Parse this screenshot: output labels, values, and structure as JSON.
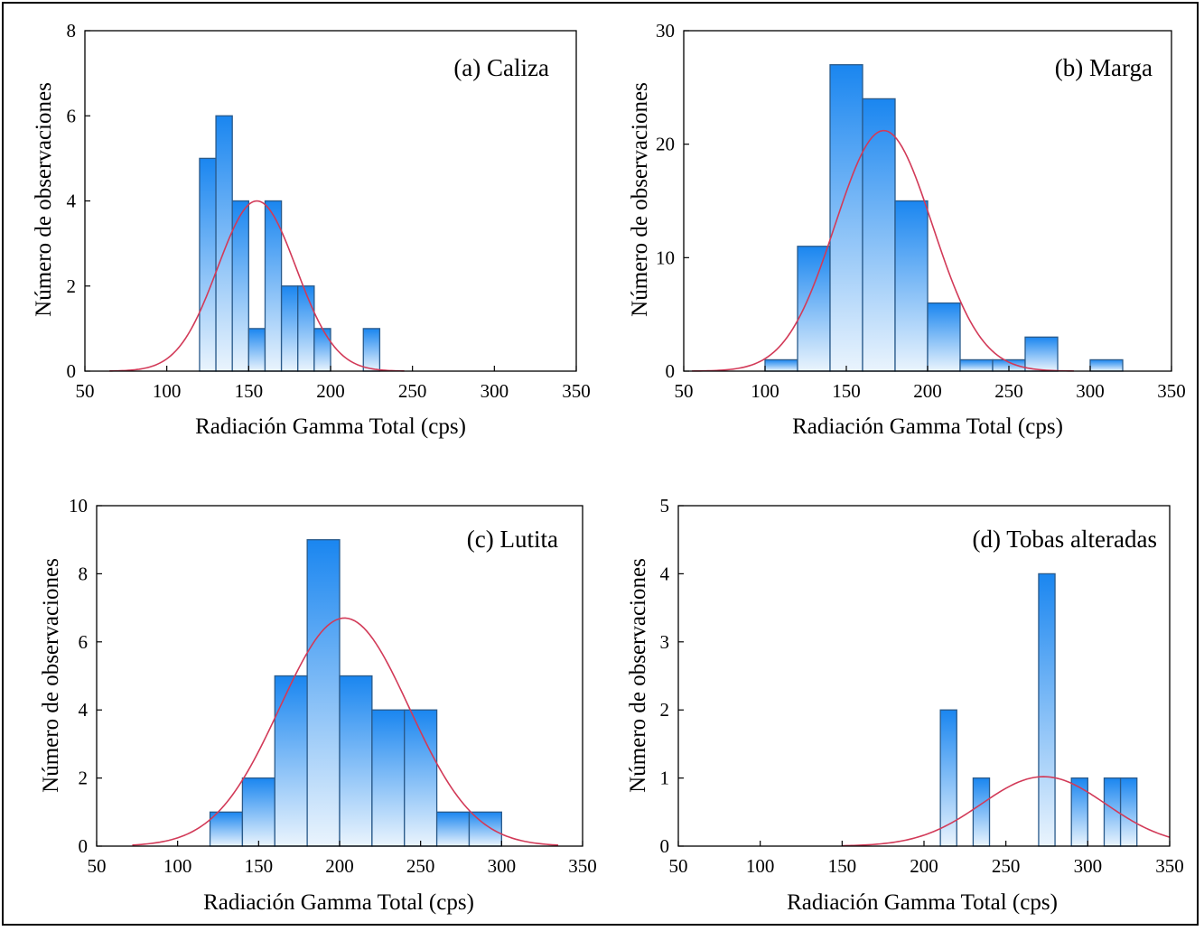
{
  "chart_data": [
    {
      "type": "bar",
      "title": "(a) Caliza",
      "xlabel": "Radiación Gamma Total (cps)",
      "ylabel": "Número de observaciones",
      "xlim": [
        50,
        350
      ],
      "ylim": [
        0,
        8
      ],
      "xticks": [
        "50",
        "100",
        "150",
        "200",
        "250",
        "300",
        "350"
      ],
      "yticks": [
        "0",
        "2",
        "4",
        "6",
        "8"
      ],
      "bins": [
        {
          "x0": 120,
          "x1": 130,
          "count": 5
        },
        {
          "x0": 130,
          "x1": 140,
          "count": 6
        },
        {
          "x0": 140,
          "x1": 150,
          "count": 4
        },
        {
          "x0": 150,
          "x1": 160,
          "count": 1
        },
        {
          "x0": 160,
          "x1": 170,
          "count": 4
        },
        {
          "x0": 170,
          "x1": 180,
          "count": 2
        },
        {
          "x0": 180,
          "x1": 190,
          "count": 2
        },
        {
          "x0": 190,
          "x1": 200,
          "count": 1
        },
        {
          "x0": 220,
          "x1": 230,
          "count": 1
        }
      ],
      "normal_curve": {
        "mean": 155,
        "peak": 4.0,
        "sd": 24,
        "x_from": 65,
        "x_to": 245
      }
    },
    {
      "type": "bar",
      "title": "(b) Marga",
      "xlabel": "Radiación Gamma Total (cps)",
      "ylabel": "Número de observaciones",
      "xlim": [
        50,
        350
      ],
      "ylim": [
        0,
        30
      ],
      "xticks": [
        "50",
        "100",
        "150",
        "200",
        "250",
        "300",
        "350"
      ],
      "yticks": [
        "0",
        "10",
        "20",
        "30"
      ],
      "bins": [
        {
          "x0": 100,
          "x1": 120,
          "count": 1
        },
        {
          "x0": 120,
          "x1": 140,
          "count": 11
        },
        {
          "x0": 140,
          "x1": 160,
          "count": 27
        },
        {
          "x0": 160,
          "x1": 180,
          "count": 24
        },
        {
          "x0": 180,
          "x1": 200,
          "count": 15
        },
        {
          "x0": 200,
          "x1": 220,
          "count": 6
        },
        {
          "x0": 220,
          "x1": 240,
          "count": 1
        },
        {
          "x0": 240,
          "x1": 260,
          "count": 1
        },
        {
          "x0": 260,
          "x1": 280,
          "count": 3
        },
        {
          "x0": 300,
          "x1": 320,
          "count": 1
        }
      ],
      "normal_curve": {
        "mean": 173,
        "peak": 21.2,
        "sd": 30,
        "x_from": 55,
        "x_to": 290
      }
    },
    {
      "type": "bar",
      "title": "(c) Lutita",
      "xlabel": "Radiación Gamma Total (cps)",
      "ylabel": "Número de observaciones",
      "xlim": [
        50,
        350
      ],
      "ylim": [
        0,
        10
      ],
      "xticks": [
        "50",
        "100",
        "150",
        "200",
        "250",
        "300",
        "350"
      ],
      "yticks": [
        "0",
        "2",
        "4",
        "6",
        "8",
        "10"
      ],
      "bins": [
        {
          "x0": 120,
          "x1": 140,
          "count": 1
        },
        {
          "x0": 140,
          "x1": 160,
          "count": 2
        },
        {
          "x0": 160,
          "x1": 180,
          "count": 5
        },
        {
          "x0": 180,
          "x1": 200,
          "count": 9
        },
        {
          "x0": 200,
          "x1": 220,
          "count": 5
        },
        {
          "x0": 220,
          "x1": 240,
          "count": 4
        },
        {
          "x0": 240,
          "x1": 260,
          "count": 4
        },
        {
          "x0": 260,
          "x1": 280,
          "count": 1
        },
        {
          "x0": 280,
          "x1": 300,
          "count": 1
        }
      ],
      "normal_curve": {
        "mean": 203,
        "peak": 6.7,
        "sd": 40,
        "x_from": 72,
        "x_to": 335
      }
    },
    {
      "type": "bar",
      "title": "(d) Tobas alteradas",
      "xlabel": "Radiación Gamma Total (cps)",
      "ylabel": "Número de observaciones",
      "xlim": [
        50,
        350
      ],
      "ylim": [
        0,
        5
      ],
      "xticks": [
        "50",
        "100",
        "150",
        "200",
        "250",
        "300",
        "350"
      ],
      "yticks": [
        "0",
        "1",
        "2",
        "3",
        "4",
        "5"
      ],
      "bins": [
        {
          "x0": 210,
          "x1": 220,
          "count": 2
        },
        {
          "x0": 230,
          "x1": 240,
          "count": 1
        },
        {
          "x0": 270,
          "x1": 280,
          "count": 4
        },
        {
          "x0": 290,
          "x1": 300,
          "count": 1
        },
        {
          "x0": 310,
          "x1": 320,
          "count": 1
        },
        {
          "x0": 320,
          "x1": 330,
          "count": 1
        }
      ],
      "normal_curve": {
        "mean": 273,
        "peak": 1.02,
        "sd": 38,
        "x_from": 150,
        "x_to": 350
      }
    }
  ],
  "colors": {
    "bar_top": "#1a86f0",
    "bar_bottom": "#eaf4fd",
    "bar_stroke": "#2a5a8a",
    "curve": "#d23a58",
    "axis": "#000000"
  }
}
